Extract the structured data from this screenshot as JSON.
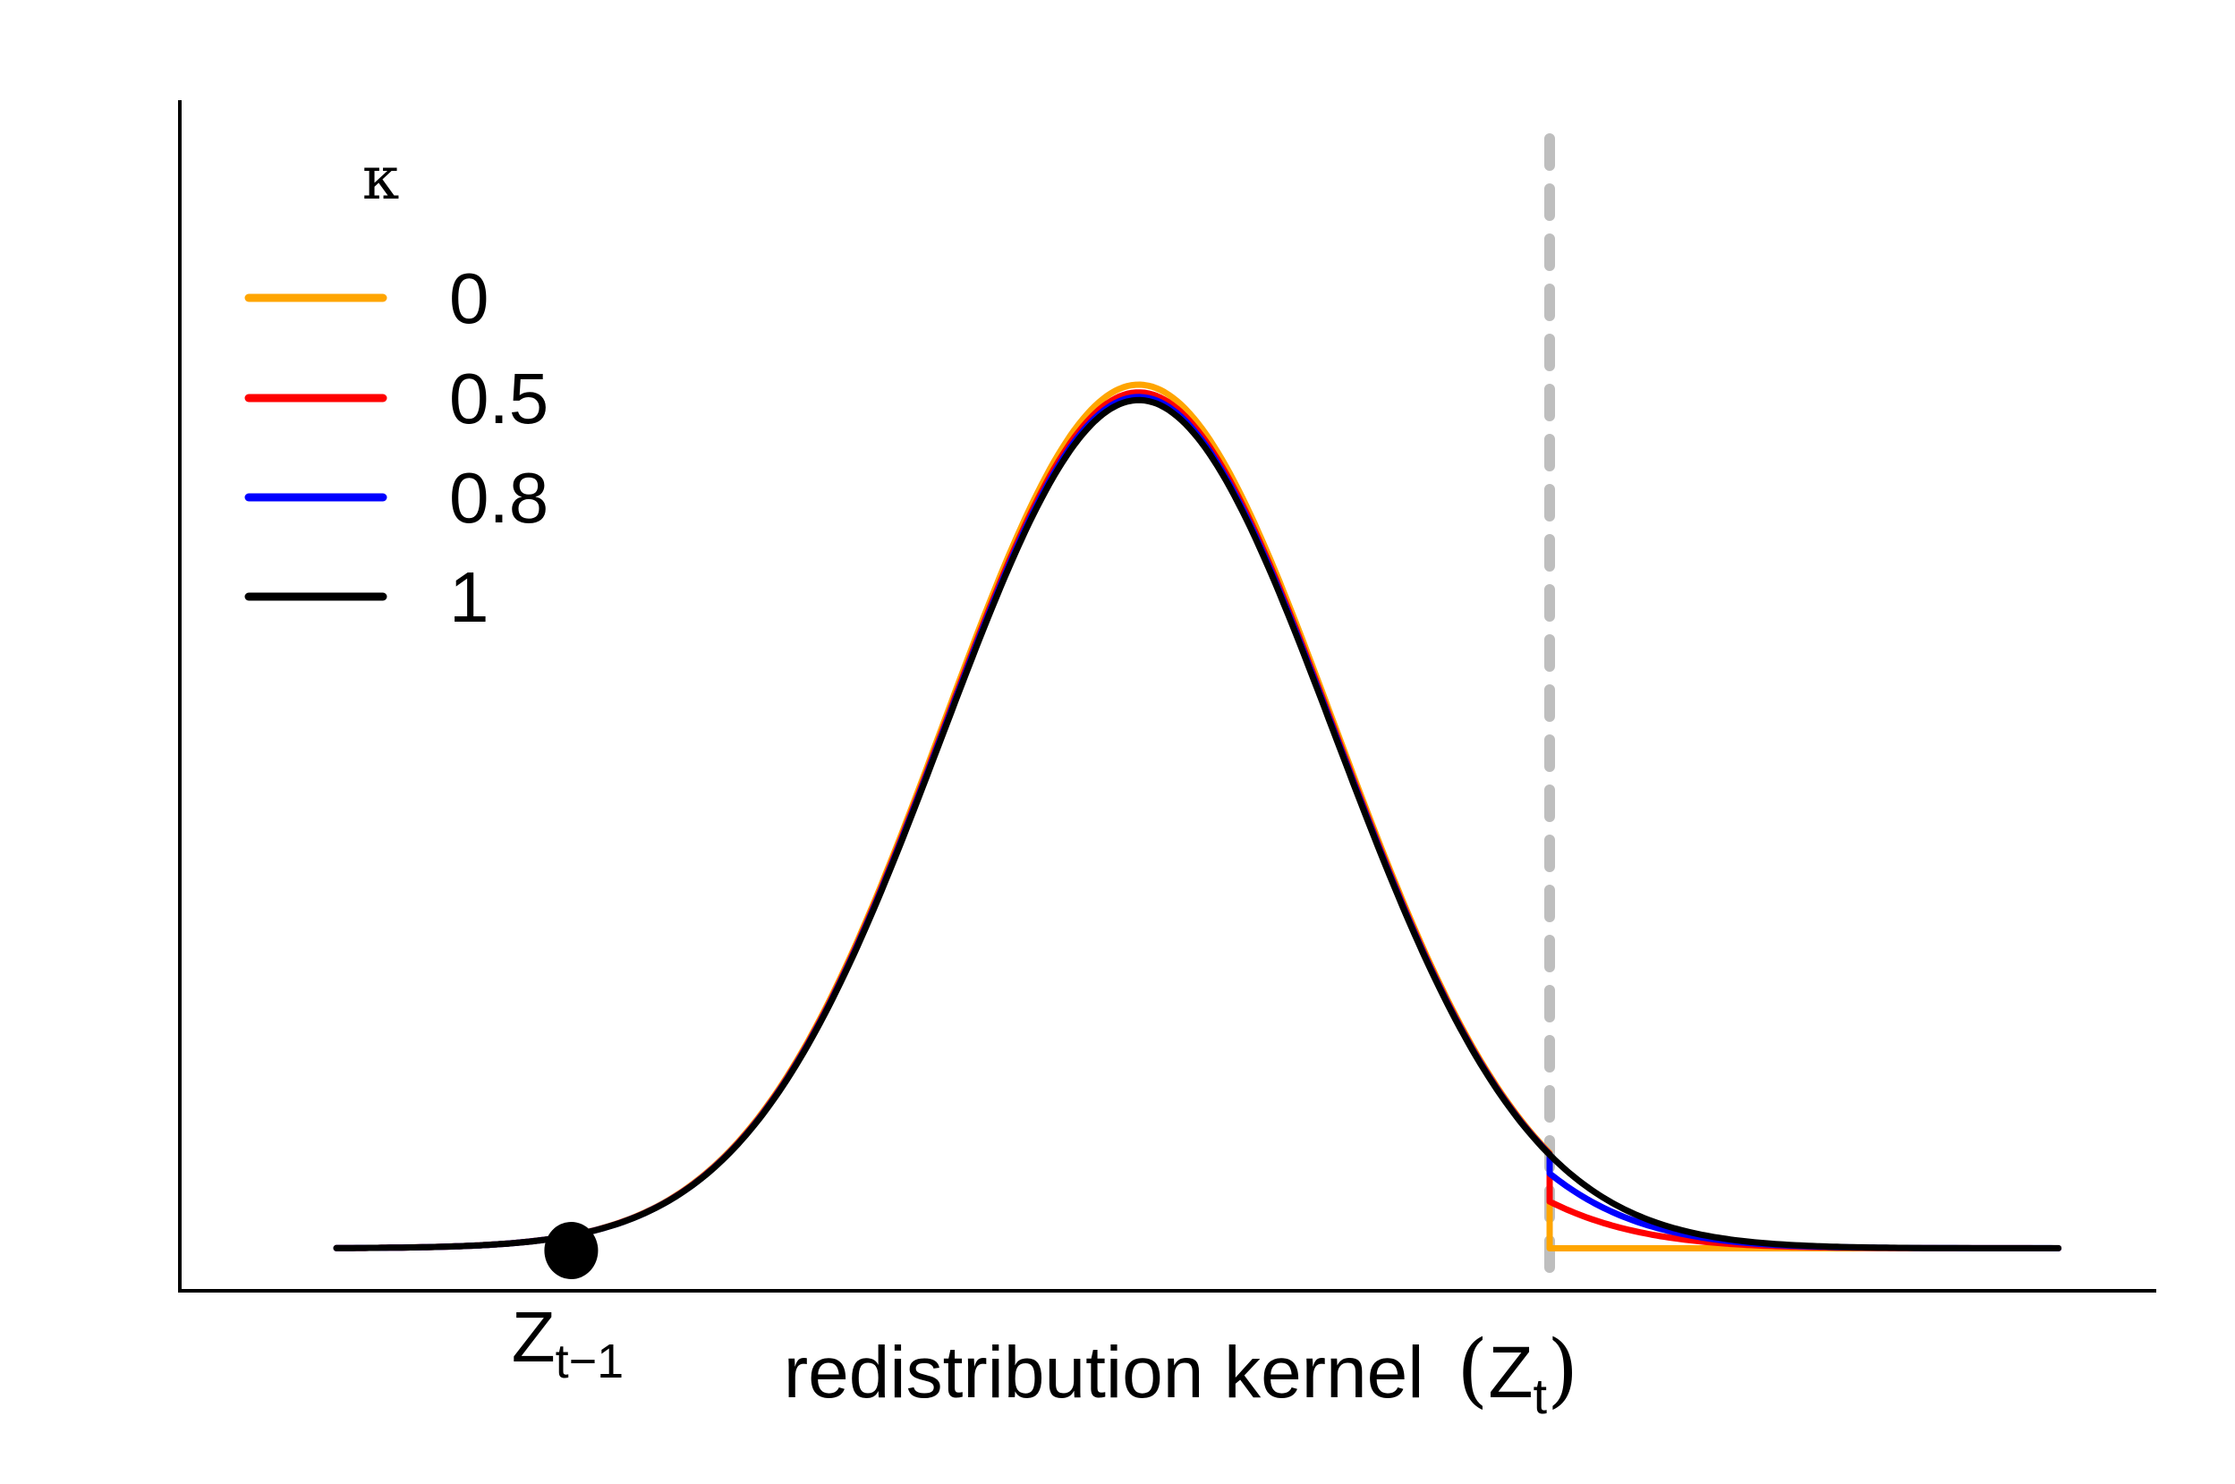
{
  "chart_data": {
    "type": "line",
    "title": "",
    "xlabel": {
      "main": "redistribution kernel",
      "symbol": "Z",
      "subscript": "t"
    },
    "ylabel": "",
    "xlim": [
      -4.3,
      5.8
    ],
    "ylim": [
      -0.02,
      0.54
    ],
    "grid": false,
    "legend": {
      "title": "κ",
      "position": "top-left",
      "entries": [
        "0",
        "0.5",
        "0.8",
        "1"
      ]
    },
    "annotations": {
      "point_label": {
        "symbol": "Z",
        "subscript": "t−1"
      },
      "point": {
        "x": -2.3,
        "y": 0
      },
      "threshold": {
        "x": 2.7,
        "style": "dashed",
        "color": "#BEBEBE"
      }
    },
    "series": [
      {
        "name": "0",
        "color": "#FFA500",
        "kappa": 0
      },
      {
        "name": "0.5",
        "color": "#FF0000",
        "kappa": 0.5
      },
      {
        "name": "0.8",
        "color": "#0000FF",
        "kappa": 0.8
      },
      {
        "name": "1",
        "color": "#000000",
        "kappa": 1
      }
    ]
  }
}
